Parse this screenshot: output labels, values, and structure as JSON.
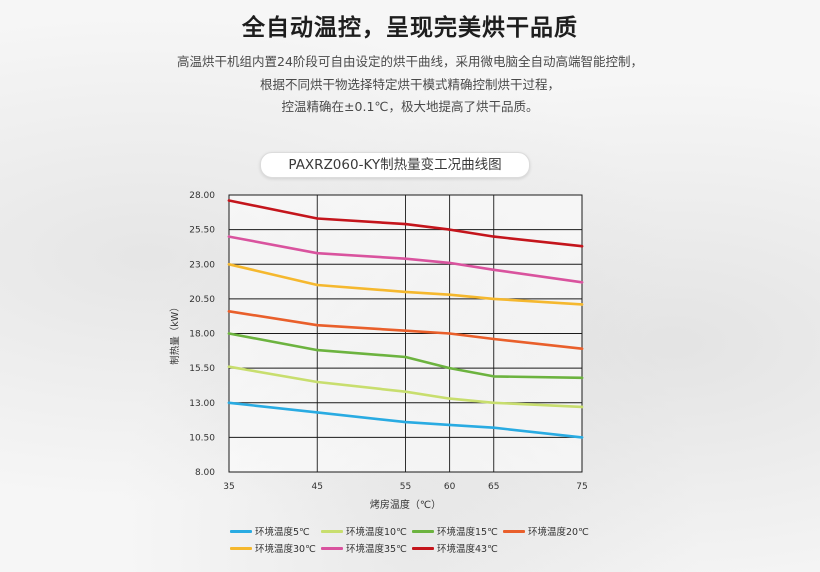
{
  "header": {
    "title": "全自动温控，呈现完美烘干品质",
    "description_lines": [
      "高温烘干机组内置24阶段可自由设定的烘干曲线，采用微电脑全自动高端智能控制，",
      "根据不同烘干物选择特定烘干模式精确控制烘干过程，",
      "控温精确在±0.1℃，极大地提高了烘干品质。"
    ]
  },
  "chart_data": {
    "type": "line",
    "title": "PAXRZ060-KY制热量变工况曲线图",
    "xlabel": "烤房温度（℃）",
    "ylabel": "制热量（kW）",
    "x": [
      35,
      45,
      55,
      60,
      65,
      75
    ],
    "xlim": [
      35,
      75
    ],
    "ylim": [
      8.0,
      28.0
    ],
    "yticks": [
      "8.00",
      "10.50",
      "13.00",
      "15.50",
      "18.00",
      "20.50",
      "23.00",
      "25.50",
      "28.00"
    ],
    "xticks": [
      "35",
      "45",
      "55",
      "60",
      "65",
      "75"
    ],
    "grid": true,
    "legend_position": "bottom",
    "series": [
      {
        "name": "环境温度5℃",
        "color": "#29abe2",
        "values": [
          13.0,
          12.3,
          11.6,
          11.4,
          11.2,
          10.5
        ]
      },
      {
        "name": "环境温度10℃",
        "color": "#c8de6e",
        "values": [
          15.6,
          14.5,
          13.8,
          13.3,
          13.0,
          12.7
        ]
      },
      {
        "name": "环境温度15℃",
        "color": "#6cb33f",
        "values": [
          18.0,
          16.8,
          16.3,
          15.5,
          14.9,
          14.8
        ]
      },
      {
        "name": "环境温度20℃",
        "color": "#e95f2b",
        "values": [
          19.6,
          18.6,
          18.2,
          18.0,
          17.6,
          16.9
        ]
      },
      {
        "name": "环境温度30℃",
        "color": "#f5b82e",
        "values": [
          23.0,
          21.5,
          21.0,
          20.8,
          20.5,
          20.1
        ]
      },
      {
        "name": "环境温度35℃",
        "color": "#d9539e",
        "values": [
          25.0,
          23.8,
          23.4,
          23.1,
          22.6,
          21.7
        ]
      },
      {
        "name": "环境温度43℃",
        "color": "#c4151c",
        "values": [
          27.6,
          26.3,
          25.9,
          25.5,
          25.0,
          24.3
        ]
      }
    ]
  }
}
